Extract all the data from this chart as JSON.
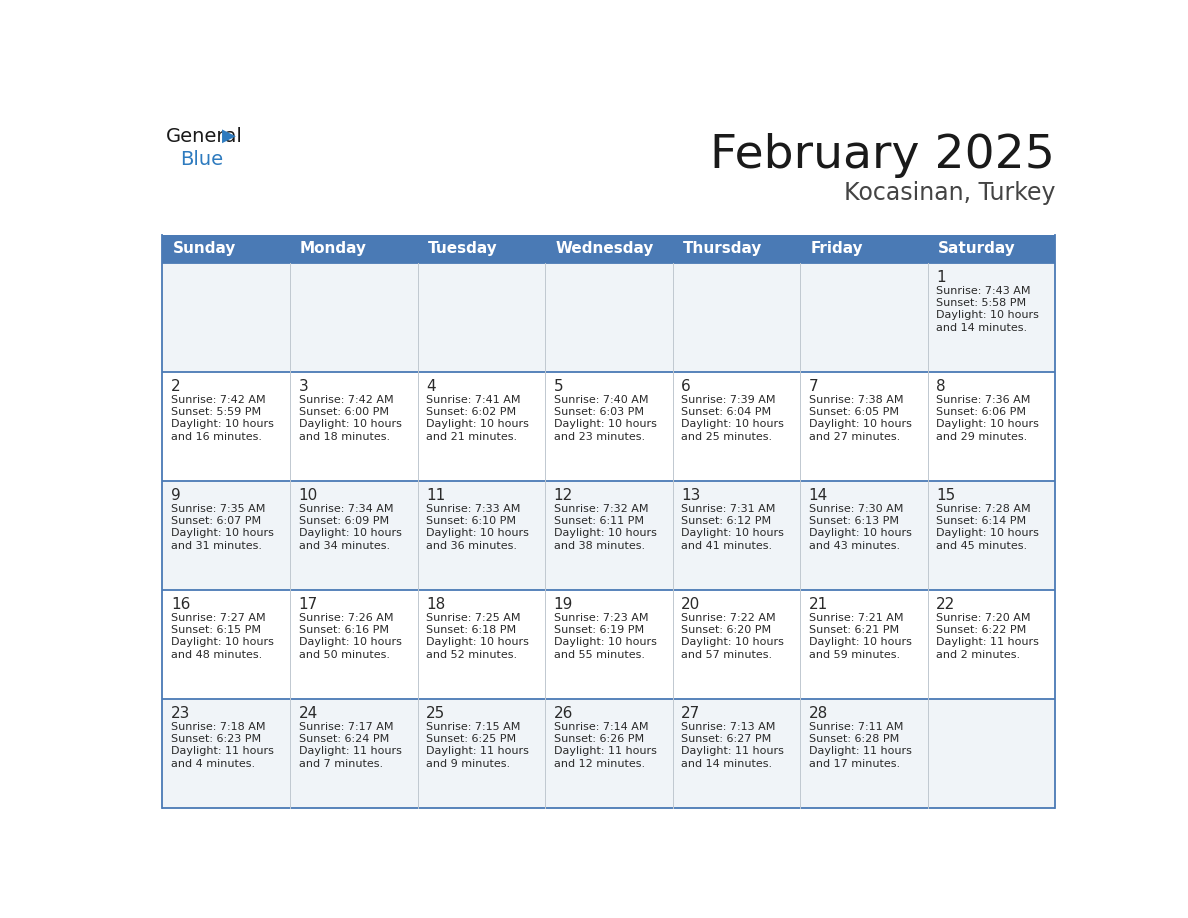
{
  "title": "February 2025",
  "subtitle": "Kocasinan, Turkey",
  "header_color": "#4a7ab5",
  "header_text_color": "#ffffff",
  "cell_bg_odd": "#f0f4f8",
  "cell_bg_even": "#ffffff",
  "border_color": "#4a7ab5",
  "grid_color": "#c0c8d0",
  "day_headers": [
    "Sunday",
    "Monday",
    "Tuesday",
    "Wednesday",
    "Thursday",
    "Friday",
    "Saturday"
  ],
  "title_color": "#1a1a1a",
  "subtitle_color": "#444444",
  "day_number_color": "#2a2a2a",
  "info_color": "#2a2a2a",
  "logo_general_color": "#1a1a1a",
  "logo_blue_color": "#2e7bbf",
  "calendar_data": [
    [
      null,
      null,
      null,
      null,
      null,
      null,
      {
        "day": 1,
        "sunrise": "7:43 AM",
        "sunset": "5:58 PM",
        "daylight": "10 hours\nand 14 minutes."
      }
    ],
    [
      {
        "day": 2,
        "sunrise": "7:42 AM",
        "sunset": "5:59 PM",
        "daylight": "10 hours\nand 16 minutes."
      },
      {
        "day": 3,
        "sunrise": "7:42 AM",
        "sunset": "6:00 PM",
        "daylight": "10 hours\nand 18 minutes."
      },
      {
        "day": 4,
        "sunrise": "7:41 AM",
        "sunset": "6:02 PM",
        "daylight": "10 hours\nand 21 minutes."
      },
      {
        "day": 5,
        "sunrise": "7:40 AM",
        "sunset": "6:03 PM",
        "daylight": "10 hours\nand 23 minutes."
      },
      {
        "day": 6,
        "sunrise": "7:39 AM",
        "sunset": "6:04 PM",
        "daylight": "10 hours\nand 25 minutes."
      },
      {
        "day": 7,
        "sunrise": "7:38 AM",
        "sunset": "6:05 PM",
        "daylight": "10 hours\nand 27 minutes."
      },
      {
        "day": 8,
        "sunrise": "7:36 AM",
        "sunset": "6:06 PM",
        "daylight": "10 hours\nand 29 minutes."
      }
    ],
    [
      {
        "day": 9,
        "sunrise": "7:35 AM",
        "sunset": "6:07 PM",
        "daylight": "10 hours\nand 31 minutes."
      },
      {
        "day": 10,
        "sunrise": "7:34 AM",
        "sunset": "6:09 PM",
        "daylight": "10 hours\nand 34 minutes."
      },
      {
        "day": 11,
        "sunrise": "7:33 AM",
        "sunset": "6:10 PM",
        "daylight": "10 hours\nand 36 minutes."
      },
      {
        "day": 12,
        "sunrise": "7:32 AM",
        "sunset": "6:11 PM",
        "daylight": "10 hours\nand 38 minutes."
      },
      {
        "day": 13,
        "sunrise": "7:31 AM",
        "sunset": "6:12 PM",
        "daylight": "10 hours\nand 41 minutes."
      },
      {
        "day": 14,
        "sunrise": "7:30 AM",
        "sunset": "6:13 PM",
        "daylight": "10 hours\nand 43 minutes."
      },
      {
        "day": 15,
        "sunrise": "7:28 AM",
        "sunset": "6:14 PM",
        "daylight": "10 hours\nand 45 minutes."
      }
    ],
    [
      {
        "day": 16,
        "sunrise": "7:27 AM",
        "sunset": "6:15 PM",
        "daylight": "10 hours\nand 48 minutes."
      },
      {
        "day": 17,
        "sunrise": "7:26 AM",
        "sunset": "6:16 PM",
        "daylight": "10 hours\nand 50 minutes."
      },
      {
        "day": 18,
        "sunrise": "7:25 AM",
        "sunset": "6:18 PM",
        "daylight": "10 hours\nand 52 minutes."
      },
      {
        "day": 19,
        "sunrise": "7:23 AM",
        "sunset": "6:19 PM",
        "daylight": "10 hours\nand 55 minutes."
      },
      {
        "day": 20,
        "sunrise": "7:22 AM",
        "sunset": "6:20 PM",
        "daylight": "10 hours\nand 57 minutes."
      },
      {
        "day": 21,
        "sunrise": "7:21 AM",
        "sunset": "6:21 PM",
        "daylight": "10 hours\nand 59 minutes."
      },
      {
        "day": 22,
        "sunrise": "7:20 AM",
        "sunset": "6:22 PM",
        "daylight": "11 hours\nand 2 minutes."
      }
    ],
    [
      {
        "day": 23,
        "sunrise": "7:18 AM",
        "sunset": "6:23 PM",
        "daylight": "11 hours\nand 4 minutes."
      },
      {
        "day": 24,
        "sunrise": "7:17 AM",
        "sunset": "6:24 PM",
        "daylight": "11 hours\nand 7 minutes."
      },
      {
        "day": 25,
        "sunrise": "7:15 AM",
        "sunset": "6:25 PM",
        "daylight": "11 hours\nand 9 minutes."
      },
      {
        "day": 26,
        "sunrise": "7:14 AM",
        "sunset": "6:26 PM",
        "daylight": "11 hours\nand 12 minutes."
      },
      {
        "day": 27,
        "sunrise": "7:13 AM",
        "sunset": "6:27 PM",
        "daylight": "11 hours\nand 14 minutes."
      },
      {
        "day": 28,
        "sunrise": "7:11 AM",
        "sunset": "6:28 PM",
        "daylight": "11 hours\nand 17 minutes."
      },
      null
    ]
  ]
}
